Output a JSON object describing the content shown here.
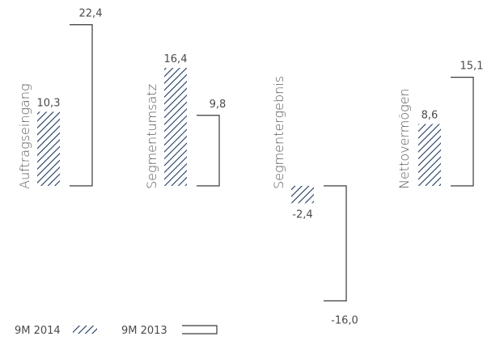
{
  "chart_data": {
    "type": "bar",
    "categories": [
      "Auftragseingang",
      "Segmentumsatz",
      "Segmentergebnis",
      "Nettovermögen"
    ],
    "series": [
      {
        "name": "9M 2014",
        "values": [
          10.3,
          16.4,
          -2.4,
          8.6
        ],
        "labels": [
          "10,3",
          "16,4",
          "-2,4",
          "8,6"
        ],
        "style": "hatched"
      },
      {
        "name": "9M 2013",
        "values": [
          22.4,
          9.8,
          -16.0,
          15.1
        ],
        "labels": [
          "22,4",
          "9,8",
          "-16,0",
          "15,1"
        ],
        "style": "bracket"
      }
    ],
    "ylim": [
      -16.0,
      22.4
    ],
    "title": "",
    "xlabel": "",
    "ylabel": "",
    "grid": false,
    "legend_position": "bottom-left",
    "colors": {
      "hatch": "#1f3a5f",
      "bracket": "#3a3a3a",
      "text": "#4a4a4a"
    }
  }
}
